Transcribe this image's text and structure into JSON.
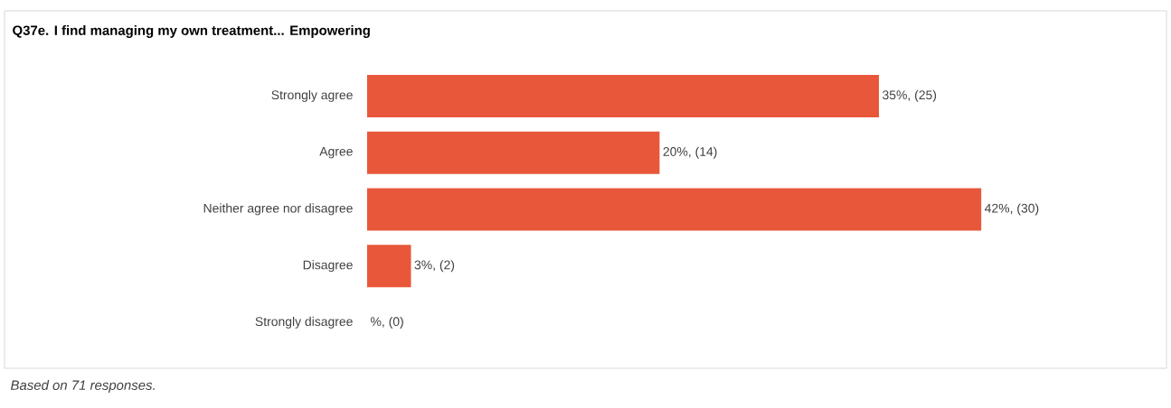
{
  "chart_data": {
    "type": "bar",
    "orientation": "horizontal",
    "title": "Q37e. I find managing my own treatment... Empowering",
    "categories": [
      "Strongly agree",
      "Agree",
      "Neither agree nor disagree",
      "Disagree",
      "Strongly disagree"
    ],
    "values": [
      35,
      20,
      42,
      3,
      0
    ],
    "value_labels": [
      "35%, (25)",
      "20%, (14)",
      "42%, (30)",
      "3%, (2)",
      "%, (0)"
    ],
    "color": "#e8573a",
    "annotations": [
      "Based on 71 responses."
    ]
  }
}
